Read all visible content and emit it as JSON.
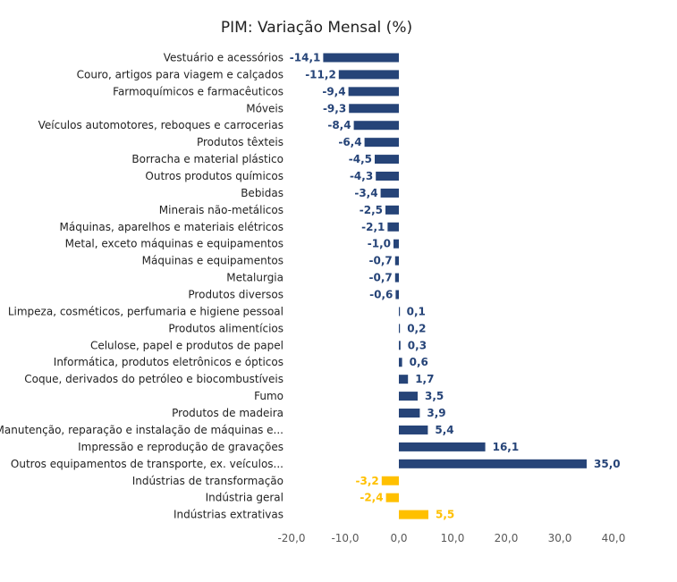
{
  "chart_data": {
    "type": "bar",
    "orientation": "horizontal",
    "title": "PIM: Variação Mensal (%)",
    "xlabel": "",
    "ylabel": "",
    "xlim": [
      -20,
      40
    ],
    "x_ticks": [
      -20,
      -10,
      0,
      10,
      20,
      30,
      40
    ],
    "x_tick_labels": [
      "-20,0",
      "-10,0",
      "0,0",
      "10,0",
      "20,0",
      "30,0",
      "40,0"
    ],
    "grid": false,
    "legend": "none",
    "colors": {
      "sector": "#264478",
      "aggregate": "#FFC000"
    },
    "categories": [
      "Vestuário e acessórios",
      "Couro, artigos para viagem e calçados",
      "Farmoquímicos e farmacêuticos",
      "Móveis",
      "Veículos automotores, reboques e carrocerias",
      "Produtos têxteis",
      "Borracha e material plástico",
      "Outros produtos químicos",
      "Bebidas",
      "Minerais não-metálicos",
      "Máquinas, aparelhos e materiais elétricos",
      "Metal, exceto máquinas e equipamentos",
      "Máquinas e equipamentos",
      "Metalurgia",
      "Produtos diversos",
      "Limpeza, cosméticos, perfumaria e higiene pessoal",
      "Produtos alimentícios",
      "Celulose, papel e produtos de papel",
      "Informática, produtos eletrônicos e ópticos",
      "Coque, derivados do petróleo e biocombustíveis",
      "Fumo",
      "Produtos de madeira",
      "Manutenção, reparação e instalação de máquinas e...",
      "Impressão e reprodução de gravações",
      "Outros equipamentos de transporte, ex. veículos...",
      "Indústrias de transformação",
      "Indústria geral",
      "Indústrias extrativas"
    ],
    "values": [
      -14.1,
      -11.2,
      -9.4,
      -9.3,
      -8.4,
      -6.4,
      -4.5,
      -4.3,
      -3.4,
      -2.5,
      -2.1,
      -1.0,
      -0.7,
      -0.7,
      -0.6,
      0.1,
      0.2,
      0.3,
      0.6,
      1.7,
      3.5,
      3.9,
      5.4,
      16.1,
      35.0,
      -3.2,
      -2.4,
      5.5
    ],
    "value_labels": [
      "-14,1",
      "-11,2",
      "-9,4",
      "-9,3",
      "-8,4",
      "-6,4",
      "-4,5",
      "-4,3",
      "-3,4",
      "-2,5",
      "-2,1",
      "-1,0",
      "-0,7",
      "-0,7",
      "-0,6",
      "0,1",
      "0,2",
      "0,3",
      "0,6",
      "1,7",
      "3,5",
      "3,9",
      "5,4",
      "16,1",
      "35,0",
      "-3,2",
      "-2,4",
      "5,5"
    ],
    "groups": [
      "sector",
      "sector",
      "sector",
      "sector",
      "sector",
      "sector",
      "sector",
      "sector",
      "sector",
      "sector",
      "sector",
      "sector",
      "sector",
      "sector",
      "sector",
      "sector",
      "sector",
      "sector",
      "sector",
      "sector",
      "sector",
      "sector",
      "sector",
      "sector",
      "sector",
      "aggregate",
      "aggregate",
      "aggregate"
    ]
  }
}
